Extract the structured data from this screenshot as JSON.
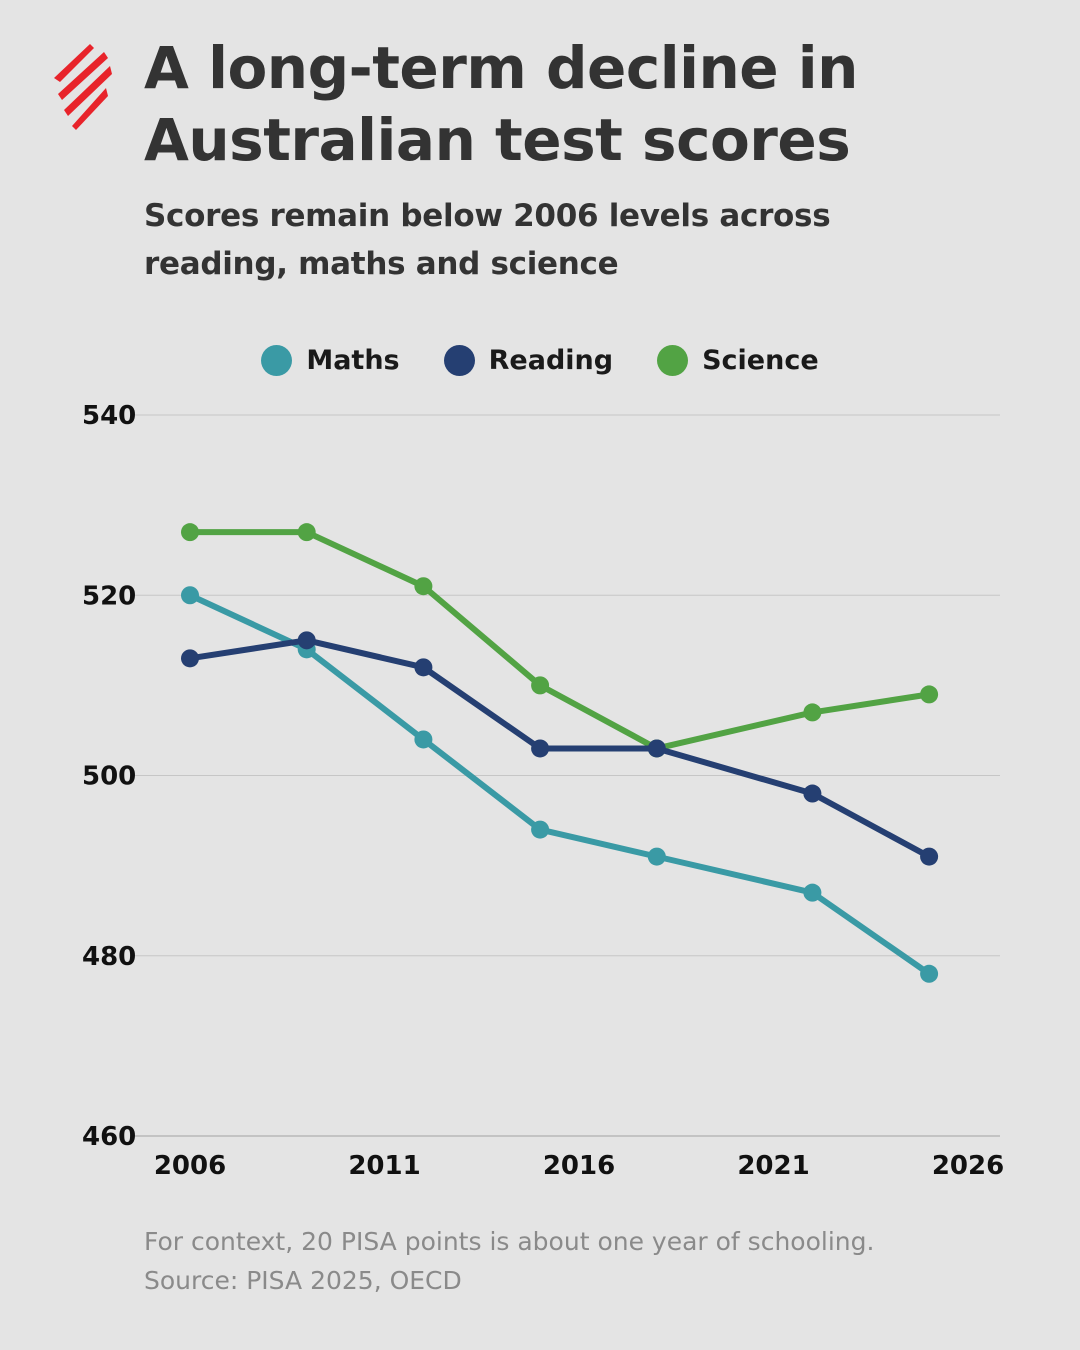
{
  "logo": {
    "icon": "sbs-flame-logo",
    "color": "#e8232a"
  },
  "title_lines": [
    "A long-term decline in",
    "Australian test scores"
  ],
  "subtitle_lines": [
    "Scores remain below 2006 levels across",
    "reading, maths and science"
  ],
  "footnote_lines": [
    "For context, 20 PISA points is about one year of schooling.",
    "Source: PISA 2025, OECD"
  ],
  "chart_data": {
    "type": "line",
    "title": "A long-term decline in Australian test scores",
    "subtitle": "Scores remain below 2006 levels across reading, maths and science",
    "xlabel": "",
    "ylabel": "",
    "xlim": [
      2006,
      2026
    ],
    "ylim": [
      460,
      540
    ],
    "x_ticks": [
      2006,
      2011,
      2016,
      2021,
      2026
    ],
    "y_ticks": [
      460,
      480,
      500,
      520,
      540
    ],
    "grid": "horizontal",
    "legend_position": "top-center",
    "x": [
      2006,
      2009,
      2012,
      2015,
      2018,
      2022,
      2025
    ],
    "series": [
      {
        "name": "Maths",
        "color": "#3a9aa5",
        "values": [
          520,
          514,
          504,
          494,
          491,
          487,
          478
        ]
      },
      {
        "name": "Reading",
        "color": "#253f72",
        "values": [
          513,
          515,
          512,
          503,
          503,
          498,
          491
        ]
      },
      {
        "name": "Science",
        "color": "#52a344",
        "values": [
          527,
          527,
          521,
          510,
          503,
          507,
          509
        ]
      }
    ]
  }
}
